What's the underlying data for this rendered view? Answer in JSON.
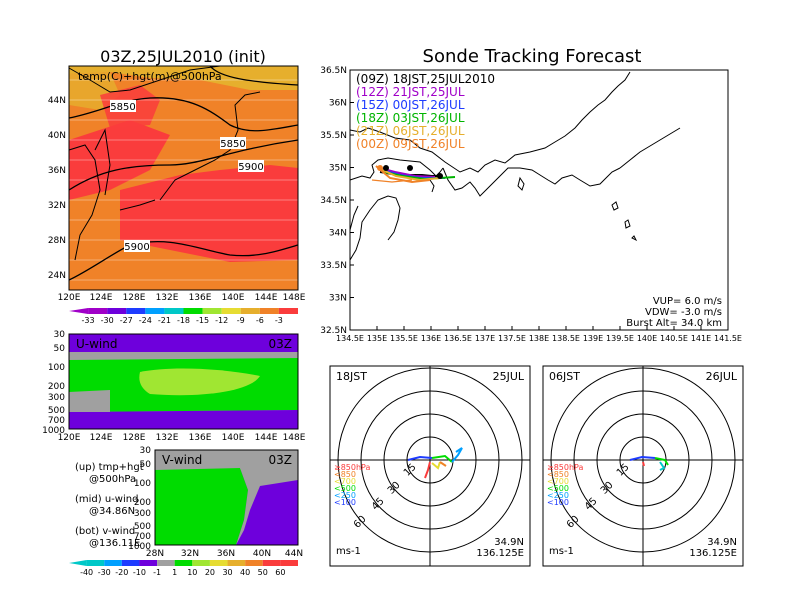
{
  "colors": {
    "temp_scale": [
      "#a000c8",
      "#6e00dc",
      "#1e3cff",
      "#00a0ff",
      "#00c8c8",
      "#00dc00",
      "#a0e632",
      "#e6dc32",
      "#e6af2d",
      "#f08228",
      "#fa3c3c"
    ],
    "wind_scale": [
      "#00c8c8",
      "#00a0ff",
      "#1e3cff",
      "#6e00dc",
      "#a0a0a0",
      "#00dc00",
      "#a0e632",
      "#e6dc32",
      "#e6af2d",
      "#f08228",
      "#fa3c3c"
    ],
    "orange_field": "#f08228",
    "red_field": "#fa3c3c",
    "ywarm": "#e6af2d",
    "uwind_field": "#00dc00",
    "uwind_light": "#a0e632",
    "purple_field": "#6e00dc",
    "gray_field": "#a0a0a0"
  },
  "left": {
    "title": "03Z,25JUL2010 (init)",
    "map_label": "temp(C)+hgt(m)@500hPa",
    "contours": [
      "5850",
      "5850",
      "5900",
      "5900"
    ],
    "lat_ticks": [
      "44N",
      "40N",
      "36N",
      "32N",
      "28N",
      "24N"
    ],
    "lon_ticks": [
      "120E",
      "124E",
      "128E",
      "132E",
      "136E",
      "140E",
      "144E",
      "148E"
    ],
    "temp_scale_labels": [
      "-33",
      "-30",
      "-27",
      "-24",
      "-21",
      "-18",
      "-15",
      "-12",
      "-9",
      "-6",
      "-3"
    ],
    "uwind": {
      "label": "U-wind",
      "time": "03Z",
      "p_ticks": [
        "30",
        "50",
        "100",
        "200",
        "300",
        "500",
        "700",
        "1000"
      ],
      "lon_ticks": [
        "120E",
        "124E",
        "128E",
        "132E",
        "136E",
        "140E",
        "144E",
        "148E"
      ]
    },
    "vwind": {
      "label": "V-wind",
      "time": "03Z",
      "p_ticks": [
        "30",
        "50",
        "100",
        "200",
        "300",
        "500",
        "700",
        "1000"
      ],
      "lat_ticks": [
        "28N",
        "32N",
        "36N",
        "40N",
        "44N"
      ]
    },
    "legend_notes": [
      [
        "(up) tmp+hgt",
        "@500hPa"
      ],
      [
        "(mid) u-wind",
        "@34.86N"
      ],
      [
        "(bot) v-wind",
        "@136.11E"
      ]
    ],
    "wind_scale_labels": [
      "-40",
      "-30",
      "-20",
      "-10",
      "-1",
      "1",
      "10",
      "20",
      "30",
      "40",
      "50",
      "60"
    ]
  },
  "right": {
    "title": "Sonde Tracking Forecast",
    "lat_ticks": [
      "36.5N",
      "36N",
      "35.5N",
      "35N",
      "34.5N",
      "34N",
      "33.5N",
      "33N",
      "32.5N"
    ],
    "lon_ticks": [
      "134.5E",
      "135E",
      "135.5E",
      "136E",
      "136.5E",
      "137E",
      "137.5E",
      "138E",
      "138.5E",
      "139E",
      "139.5E",
      "140E",
      "140.5E",
      "141E",
      "141.5E"
    ],
    "launches": [
      {
        "text": "(09Z)  18JST,25JUL2010",
        "color": "#000000"
      },
      {
        "text": "(12Z)  21JST,25JUL",
        "color": "#a000c8"
      },
      {
        "text": "(15Z)  00JST,26JUL",
        "color": "#1e3cff"
      },
      {
        "text": "(18Z)  03JST,26JUL",
        "color": "#00b400"
      },
      {
        "text": "(21Z)  06JST,26JUL",
        "color": "#e6af2d"
      },
      {
        "text": "(00Z)  09JST,26JUL",
        "color": "#f08228"
      }
    ],
    "params": [
      "VUP= 6.0 m/s",
      "VDW= -3.0 m/s",
      "Burst Alt= 34.0 km"
    ]
  },
  "hodo1": {
    "time": "18JST",
    "date": "25JUL",
    "rings": [
      "15",
      "30",
      "45",
      "60"
    ],
    "units": "ms-1",
    "lat": "34.9N",
    "lon": "136.125E"
  },
  "hodo2": {
    "time": "06JST",
    "date": "26JUL",
    "rings": [
      "15",
      "30",
      "45",
      "60"
    ],
    "units": "ms-1",
    "lat": "34.9N",
    "lon": "136.125E"
  },
  "hodo_legend": [
    {
      "text": "≥850hPa",
      "color": "#fa3c3c"
    },
    {
      "text": "<850",
      "color": "#f08228"
    },
    {
      "text": "<700",
      "color": "#e6dc32"
    },
    {
      "text": "<500",
      "color": "#00dc00"
    },
    {
      "text": "<250",
      "color": "#00a0ff"
    },
    {
      "text": "<100",
      "color": "#1e3cff"
    }
  ]
}
